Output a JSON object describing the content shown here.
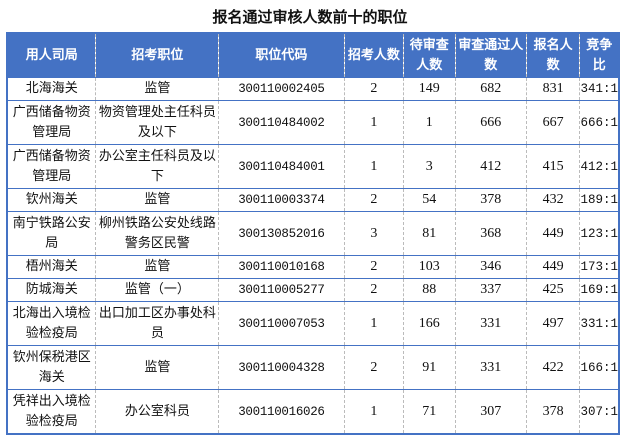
{
  "title": "报名通过审核人数前十的职位",
  "headers": [
    "用人司局",
    "招考职位",
    "职位代码",
    "招考人数",
    "待审查人数",
    "审查通过人数",
    "报名人数",
    "竞争比"
  ],
  "rows": [
    [
      "北海海关",
      "监管",
      "300110002405",
      "2",
      "149",
      "682",
      "831",
      "341:1"
    ],
    [
      "广西储备物资管理局",
      "物资管理处主任科员及以下",
      "300110484002",
      "1",
      "1",
      "666",
      "667",
      "666:1"
    ],
    [
      "广西储备物资管理局",
      "办公室主任科员及以下",
      "300110484001",
      "1",
      "3",
      "412",
      "415",
      "412:1"
    ],
    [
      "钦州海关",
      "监管",
      "300110003374",
      "2",
      "54",
      "378",
      "432",
      "189:1"
    ],
    [
      "南宁铁路公安局",
      "柳州铁路公安处线路警务区民警",
      "300130852016",
      "3",
      "81",
      "368",
      "449",
      "123:1"
    ],
    [
      "梧州海关",
      "监管",
      "300110010168",
      "2",
      "103",
      "346",
      "449",
      "173:1"
    ],
    [
      "防城海关",
      "监管（一）",
      "300110005277",
      "2",
      "88",
      "337",
      "425",
      "169:1"
    ],
    [
      "北海出入境检验检疫局",
      "出口加工区办事处科员",
      "300110007053",
      "1",
      "166",
      "331",
      "497",
      "331:1"
    ],
    [
      "钦州保税港区海关",
      "监管",
      "300110004328",
      "2",
      "91",
      "331",
      "422",
      "166:1"
    ],
    [
      "凭祥出入境检验检疫局",
      "办公室科员",
      "300110016026",
      "1",
      "71",
      "307",
      "378",
      "307:1"
    ]
  ],
  "colors": {
    "header_bg": "#4472c4",
    "border": "#4472c4"
  }
}
